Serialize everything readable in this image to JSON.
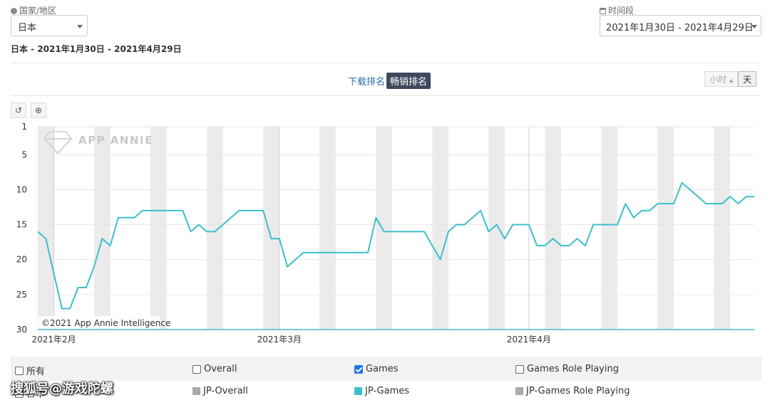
{
  "filters": {
    "region_label": "国家/地区",
    "region_value": "日本",
    "period_label": "时间段",
    "period_value": "2021年1月30日 - 2021年4月29日",
    "summary": "日本 - 2021年1月30日 - 2021年4月29日"
  },
  "tabs": {
    "download": "下载排名",
    "revenue": "畅销排名",
    "active": "revenue"
  },
  "granularity": {
    "hour": "小时",
    "day": "天",
    "selected": "day"
  },
  "watermark": "APP ANNIE",
  "copyright": "©2021 App Annie Intelligence",
  "overlay_text": "搜狐号@游戏陀螺",
  "colors": {
    "line": "#3dbfc9",
    "grid": "#e6e6e6",
    "weekend": "#ebebeb",
    "axis": "#3dbfc9"
  },
  "chart_data": {
    "type": "line",
    "title": "",
    "xlabel": "",
    "ylabel": "",
    "y_reversed": true,
    "ylim": [
      1,
      30
    ],
    "yticks": [
      1,
      5,
      10,
      15,
      20,
      25,
      30
    ],
    "xlim": [
      "2021-01-30",
      "2021-04-29"
    ],
    "xticks": [
      {
        "date": "2021-02-01",
        "label": "2021年2月"
      },
      {
        "date": "2021-03-01",
        "label": "2021年3月"
      },
      {
        "date": "2021-04-01",
        "label": "2021年4月"
      }
    ],
    "weekend_shading": true,
    "grid": true,
    "series": [
      {
        "name": "JP-Games",
        "color": "#3dbfc9",
        "points": [
          [
            "2021-01-30",
            16
          ],
          [
            "2021-01-31",
            17
          ],
          [
            "2021-02-01",
            22
          ],
          [
            "2021-02-02",
            27
          ],
          [
            "2021-02-03",
            27
          ],
          [
            "2021-02-04",
            24
          ],
          [
            "2021-02-05",
            24
          ],
          [
            "2021-02-06",
            21
          ],
          [
            "2021-02-07",
            17
          ],
          [
            "2021-02-08",
            18
          ],
          [
            "2021-02-09",
            14
          ],
          [
            "2021-02-10",
            14
          ],
          [
            "2021-02-11",
            14
          ],
          [
            "2021-02-12",
            13
          ],
          [
            "2021-02-13",
            13
          ],
          [
            "2021-02-14",
            13
          ],
          [
            "2021-02-15",
            13
          ],
          [
            "2021-02-16",
            13
          ],
          [
            "2021-02-17",
            13
          ],
          [
            "2021-02-18",
            16
          ],
          [
            "2021-02-19",
            15
          ],
          [
            "2021-02-20",
            16
          ],
          [
            "2021-02-21",
            16
          ],
          [
            "2021-02-22",
            15
          ],
          [
            "2021-02-23",
            14
          ],
          [
            "2021-02-24",
            13
          ],
          [
            "2021-02-25",
            13
          ],
          [
            "2021-02-26",
            13
          ],
          [
            "2021-02-27",
            13
          ],
          [
            "2021-02-28",
            17
          ],
          [
            "2021-03-01",
            17
          ],
          [
            "2021-03-02",
            21
          ],
          [
            "2021-03-03",
            20
          ],
          [
            "2021-03-04",
            19
          ],
          [
            "2021-03-05",
            19
          ],
          [
            "2021-03-06",
            19
          ],
          [
            "2021-03-07",
            19
          ],
          [
            "2021-03-08",
            19
          ],
          [
            "2021-03-09",
            19
          ],
          [
            "2021-03-10",
            19
          ],
          [
            "2021-03-11",
            19
          ],
          [
            "2021-03-12",
            19
          ],
          [
            "2021-03-13",
            14
          ],
          [
            "2021-03-14",
            16
          ],
          [
            "2021-03-15",
            16
          ],
          [
            "2021-03-16",
            16
          ],
          [
            "2021-03-17",
            16
          ],
          [
            "2021-03-18",
            16
          ],
          [
            "2021-03-19",
            16
          ],
          [
            "2021-03-20",
            18
          ],
          [
            "2021-03-21",
            20
          ],
          [
            "2021-03-22",
            16
          ],
          [
            "2021-03-23",
            15
          ],
          [
            "2021-03-24",
            15
          ],
          [
            "2021-03-25",
            14
          ],
          [
            "2021-03-26",
            13
          ],
          [
            "2021-03-27",
            16
          ],
          [
            "2021-03-28",
            15
          ],
          [
            "2021-03-29",
            17
          ],
          [
            "2021-03-30",
            15
          ],
          [
            "2021-03-31",
            15
          ],
          [
            "2021-04-01",
            15
          ],
          [
            "2021-04-02",
            18
          ],
          [
            "2021-04-03",
            18
          ],
          [
            "2021-04-04",
            17
          ],
          [
            "2021-04-05",
            18
          ],
          [
            "2021-04-06",
            18
          ],
          [
            "2021-04-07",
            17
          ],
          [
            "2021-04-08",
            18
          ],
          [
            "2021-04-09",
            15
          ],
          [
            "2021-04-10",
            15
          ],
          [
            "2021-04-11",
            15
          ],
          [
            "2021-04-12",
            15
          ],
          [
            "2021-04-13",
            12
          ],
          [
            "2021-04-14",
            14
          ],
          [
            "2021-04-15",
            13
          ],
          [
            "2021-04-16",
            13
          ],
          [
            "2021-04-17",
            12
          ],
          [
            "2021-04-18",
            12
          ],
          [
            "2021-04-19",
            12
          ],
          [
            "2021-04-20",
            9
          ],
          [
            "2021-04-21",
            10
          ],
          [
            "2021-04-22",
            11
          ],
          [
            "2021-04-23",
            12
          ],
          [
            "2021-04-24",
            12
          ],
          [
            "2021-04-25",
            12
          ],
          [
            "2021-04-26",
            11
          ],
          [
            "2021-04-27",
            12
          ],
          [
            "2021-04-28",
            11
          ],
          [
            "2021-04-29",
            11
          ]
        ]
      }
    ]
  },
  "legend": {
    "row1": [
      {
        "label": "所有",
        "checked": false
      },
      {
        "label": "Overall",
        "checked": false
      },
      {
        "label": "Games",
        "checked": true
      },
      {
        "label": "Games Role Playing",
        "checked": false
      }
    ],
    "row2": [
      {
        "label": "日本",
        "type": "checkbox"
      },
      {
        "label": "JP-Overall",
        "color": "#aaaaaa"
      },
      {
        "label": "JP-Games",
        "color": "#3dbfc9"
      },
      {
        "label": "JP-Games Role Playing",
        "color": "#aaaaaa"
      }
    ]
  }
}
